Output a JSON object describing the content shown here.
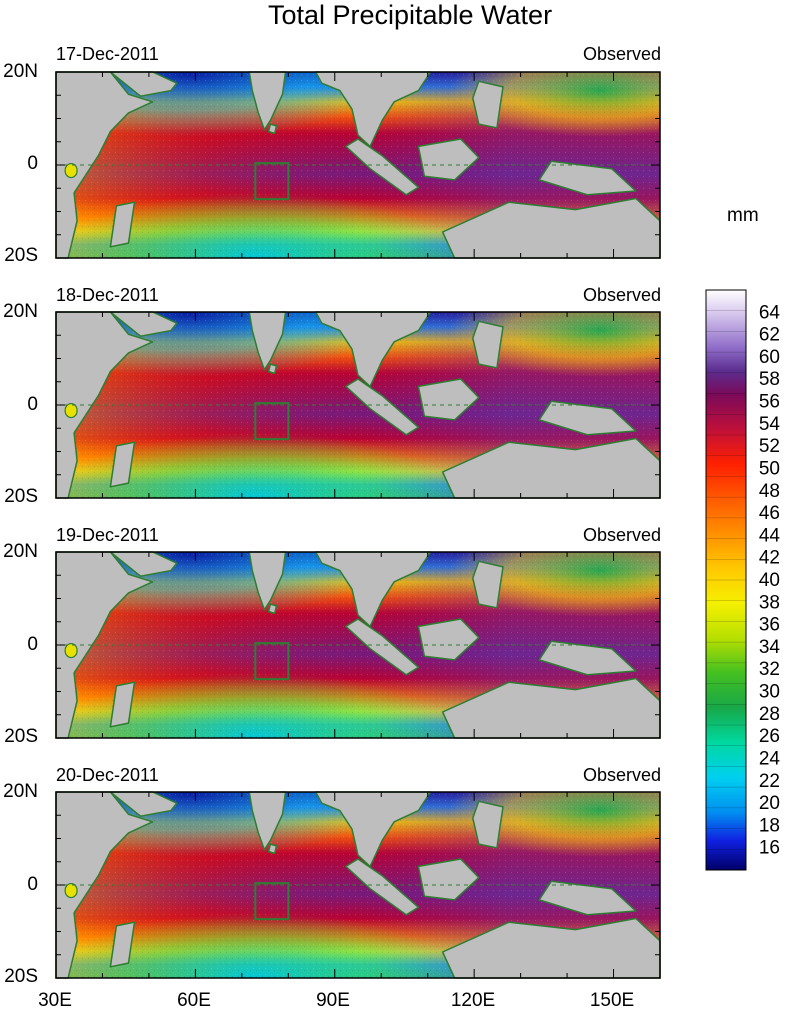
{
  "title": "Total Precipitable Water",
  "unit": "mm",
  "panels": [
    {
      "date": "17-Dec-2011",
      "label": "Observed"
    },
    {
      "date": "18-Dec-2011",
      "label": "Observed"
    },
    {
      "date": "19-Dec-2011",
      "label": "Observed"
    },
    {
      "date": "20-Dec-2011",
      "label": "Observed"
    }
  ],
  "lat_labels": [
    "20N",
    "0",
    "20S"
  ],
  "lon_labels": [
    "30E",
    "60E",
    "90E",
    "120E",
    "150E"
  ],
  "colorbar_labels": [
    "64",
    "62",
    "60",
    "58",
    "56",
    "54",
    "52",
    "50",
    "48",
    "46",
    "44",
    "42",
    "40",
    "38",
    "36",
    "34",
    "32",
    "30",
    "28",
    "26",
    "24",
    "22",
    "20",
    "18",
    "16"
  ],
  "colors": {
    "land": "#bebebe",
    "coast": "#2e7d32",
    "frame": "#000000"
  }
}
